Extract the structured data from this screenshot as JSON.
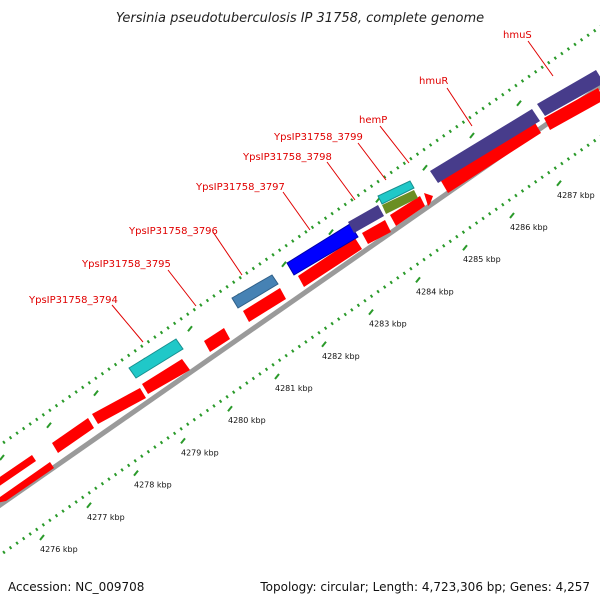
{
  "title": "Yersinia pseudotuberculosis IP 31758, complete genome",
  "footer": {
    "accession": "Accession: NC_009708",
    "summary": "Topology: circular; Length: 4,723,306 bp; Genes: 4,257"
  },
  "colors": {
    "cds_red": "#ff0000",
    "dark_blue": "#473c8b",
    "bright_blue": "#0000ff",
    "steel_blue": "#4682b4",
    "cyan": "#20c8c8",
    "olive": "#6b8e23",
    "tick_green": "#2a9a2a",
    "backbone": "#9a9a9a",
    "label_red": "#e00000"
  },
  "scale": {
    "labels": [
      "4276 kbp",
      "4277 kbp",
      "4278 kbp",
      "4279 kbp",
      "4280 kbp",
      "4281 kbp",
      "4282 kbp",
      "4283 kbp",
      "4284 kbp",
      "4285 kbp",
      "4286 kbp",
      "4287 kbp"
    ]
  },
  "gene_labels": [
    {
      "text": "YpsIP31758_3794"
    },
    {
      "text": "YpsIP31758_3795"
    },
    {
      "text": "YpsIP31758_3796"
    },
    {
      "text": "YpsIP31758_3797"
    },
    {
      "text": "YpsIP31758_3798"
    },
    {
      "text": "YpsIP31758_3799"
    },
    {
      "text": "hemP"
    },
    {
      "text": "hmuR"
    },
    {
      "text": "hmuS"
    }
  ]
}
